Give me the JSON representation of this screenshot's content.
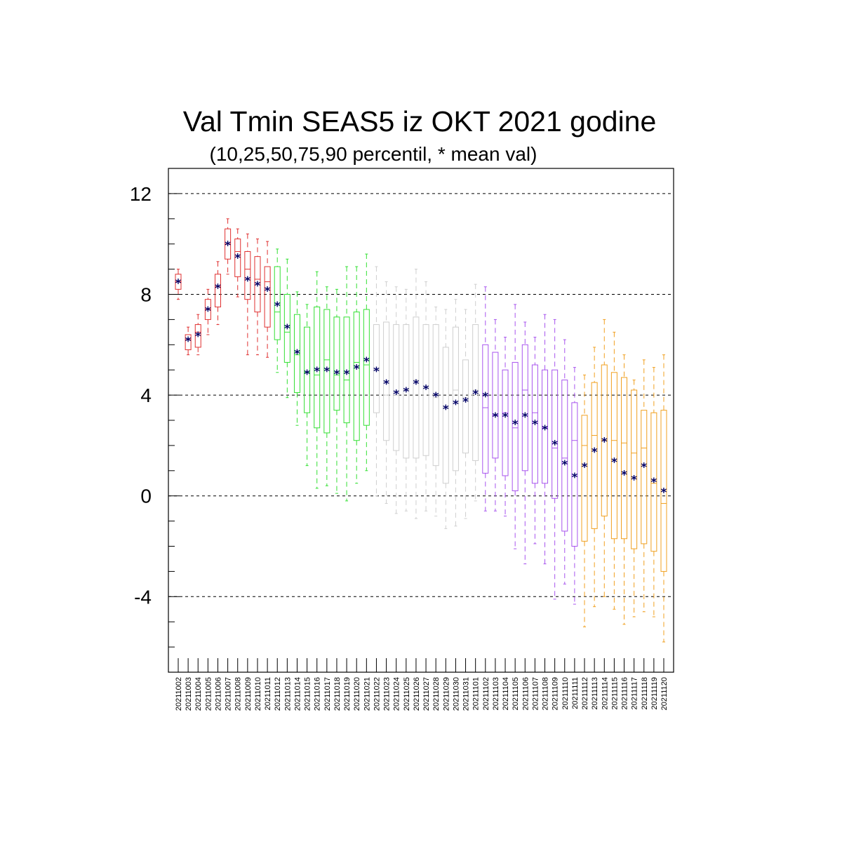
{
  "chart_data": {
    "type": "box",
    "title": "Val Tmin SEAS5 iz OKT 2021 godine",
    "subtitle": "(10,25,50,75,90 percentil, * mean val)",
    "xlabel": "",
    "ylabel": "",
    "ylim": [
      -7,
      13
    ],
    "yticks": [
      -4,
      0,
      4,
      8,
      12
    ],
    "ytick_labels": [
      "-4",
      "0",
      "4",
      "8",
      "12"
    ],
    "grid": "horizontal dashed at major ticks",
    "color_groups": [
      {
        "color": "#e03030",
        "from": 0,
        "to": 9
      },
      {
        "color": "#33e033",
        "from": 10,
        "to": 19
      },
      {
        "color": "#cfcfcf",
        "from": 20,
        "to": 30
      },
      {
        "color": "#a855ee",
        "from": 31,
        "to": 40
      },
      {
        "color": "#f0a020",
        "from": 41,
        "to": 50
      }
    ],
    "mean_marker_color": "#000066",
    "categories": [
      "20211002",
      "20211003",
      "20211004",
      "20211005",
      "20211006",
      "20211007",
      "20211008",
      "20211009",
      "20211010",
      "20211011",
      "20211012",
      "20211013",
      "20211014",
      "20211015",
      "20211016",
      "20211017",
      "20211018",
      "20211019",
      "20211020",
      "20211021",
      "20211022",
      "20211023",
      "20211024",
      "20211025",
      "20211026",
      "20211027",
      "20211028",
      "20211029",
      "20211030",
      "20211031",
      "20211101",
      "20211102",
      "20211103",
      "20211104",
      "20211105",
      "20211106",
      "20211107",
      "20211108",
      "20211109",
      "20211110",
      "20211111",
      "20211112",
      "20211113",
      "20211114",
      "20211115",
      "20211116",
      "20211117",
      "20211118",
      "20211119",
      "20211120"
    ],
    "boxes": [
      {
        "p10": 7.8,
        "p25": 8.2,
        "p50": 8.5,
        "p75": 8.8,
        "p90": 9.0,
        "mean": 8.5
      },
      {
        "p10": 5.6,
        "p25": 5.8,
        "p50": 6.2,
        "p75": 6.4,
        "p90": 6.7,
        "mean": 6.2
      },
      {
        "p10": 5.6,
        "p25": 5.9,
        "p50": 6.5,
        "p75": 6.8,
        "p90": 7.2,
        "mean": 6.4
      },
      {
        "p10": 6.4,
        "p25": 7.0,
        "p50": 7.4,
        "p75": 7.8,
        "p90": 8.2,
        "mean": 7.4
      },
      {
        "p10": 6.8,
        "p25": 7.5,
        "p50": 8.3,
        "p75": 8.8,
        "p90": 9.3,
        "mean": 8.3
      },
      {
        "p10": 8.8,
        "p25": 9.4,
        "p50": 10.0,
        "p75": 10.6,
        "p90": 11.0,
        "mean": 10.0
      },
      {
        "p10": 7.9,
        "p25": 8.7,
        "p50": 9.7,
        "p75": 10.2,
        "p90": 10.6,
        "mean": 9.5
      },
      {
        "p10": 5.6,
        "p25": 7.8,
        "p50": 9.0,
        "p75": 9.7,
        "p90": 10.4,
        "mean": 8.6
      },
      {
        "p10": 5.6,
        "p25": 7.3,
        "p50": 8.6,
        "p75": 9.5,
        "p90": 10.2,
        "mean": 8.4
      },
      {
        "p10": 5.5,
        "p25": 6.7,
        "p50": 8.5,
        "p75": 9.1,
        "p90": 10.1,
        "mean": 8.2
      },
      {
        "p10": 4.9,
        "p25": 6.2,
        "p50": 7.3,
        "p75": 9.1,
        "p90": 9.8,
        "mean": 7.6
      },
      {
        "p10": 3.9,
        "p25": 5.3,
        "p50": 6.5,
        "p75": 8.0,
        "p90": 9.4,
        "mean": 6.7
      },
      {
        "p10": 2.8,
        "p25": 4.1,
        "p50": 5.6,
        "p75": 7.2,
        "p90": 8.1,
        "mean": 5.7
      },
      {
        "p10": 1.2,
        "p25": 3.3,
        "p50": 4.9,
        "p75": 6.7,
        "p90": 7.6,
        "mean": 4.9
      },
      {
        "p10": 0.3,
        "p25": 2.7,
        "p50": 4.8,
        "p75": 7.5,
        "p90": 8.9,
        "mean": 5.0
      },
      {
        "p10": 0.4,
        "p25": 2.5,
        "p50": 5.4,
        "p75": 7.4,
        "p90": 8.3,
        "mean": 5.0
      },
      {
        "p10": 0.1,
        "p25": 3.4,
        "p50": 4.8,
        "p75": 7.1,
        "p90": 8.2,
        "mean": 4.9
      },
      {
        "p10": -0.2,
        "p25": 2.9,
        "p50": 4.6,
        "p75": 7.1,
        "p90": 9.1,
        "mean": 4.9
      },
      {
        "p10": 0.5,
        "p25": 2.2,
        "p50": 5.3,
        "p75": 7.3,
        "p90": 9.1,
        "mean": 5.1
      },
      {
        "p10": 1.0,
        "p25": 2.8,
        "p50": 5.2,
        "p75": 7.4,
        "p90": 9.6,
        "mean": 5.4
      },
      {
        "p10": 0.0,
        "p25": 3.3,
        "p50": 5.0,
        "p75": 6.8,
        "p90": 9.1,
        "mean": 5.0
      },
      {
        "p10": -0.3,
        "p25": 2.2,
        "p50": 4.0,
        "p75": 6.9,
        "p90": 8.5,
        "mean": 4.5
      },
      {
        "p10": -0.7,
        "p25": 1.8,
        "p50": 4.0,
        "p75": 6.8,
        "p90": 8.3,
        "mean": 4.1
      },
      {
        "p10": -0.6,
        "p25": 1.5,
        "p50": 4.2,
        "p75": 6.8,
        "p90": 8.2,
        "mean": 4.2
      },
      {
        "p10": -0.9,
        "p25": 1.5,
        "p50": 4.6,
        "p75": 7.1,
        "p90": 9.0,
        "mean": 4.5
      },
      {
        "p10": -0.6,
        "p25": 1.6,
        "p50": 4.3,
        "p75": 6.8,
        "p90": 8.5,
        "mean": 4.3
      },
      {
        "p10": -0.8,
        "p25": 1.2,
        "p50": 3.9,
        "p75": 6.8,
        "p90": 7.5,
        "mean": 4.0
      },
      {
        "p10": -1.3,
        "p25": 0.5,
        "p50": 3.5,
        "p75": 5.9,
        "p90": 7.4,
        "mean": 3.5
      },
      {
        "p10": -1.2,
        "p25": 1.0,
        "p50": 4.2,
        "p75": 6.7,
        "p90": 7.8,
        "mean": 3.7
      },
      {
        "p10": -0.9,
        "p25": 1.7,
        "p50": 3.9,
        "p75": 5.4,
        "p90": 7.4,
        "mean": 3.8
      },
      {
        "p10": -0.2,
        "p25": 1.4,
        "p50": 4.2,
        "p75": 6.8,
        "p90": 8.4,
        "mean": 4.1
      },
      {
        "p10": -0.6,
        "p25": 0.9,
        "p50": 3.5,
        "p75": 6.0,
        "p90": 8.3,
        "mean": 4.0
      },
      {
        "p10": -0.6,
        "p25": 1.5,
        "p50": 3.2,
        "p75": 5.7,
        "p90": 7.0,
        "mean": 3.2
      },
      {
        "p10": -0.8,
        "p25": 0.8,
        "p50": 3.3,
        "p75": 5.0,
        "p90": 6.3,
        "mean": 3.2
      },
      {
        "p10": -2.1,
        "p25": 0.2,
        "p50": 2.7,
        "p75": 5.3,
        "p90": 7.6,
        "mean": 2.9
      },
      {
        "p10": -2.7,
        "p25": 1.0,
        "p50": 4.2,
        "p75": 6.0,
        "p90": 6.9,
        "mean": 3.2
      },
      {
        "p10": -1.9,
        "p25": 0.5,
        "p50": 3.3,
        "p75": 5.2,
        "p90": 6.3,
        "mean": 2.9
      },
      {
        "p10": -2.7,
        "p25": 0.5,
        "p50": 2.7,
        "p75": 5.0,
        "p90": 7.2,
        "mean": 2.7
      },
      {
        "p10": -4.1,
        "p25": -0.1,
        "p50": 1.9,
        "p75": 5.0,
        "p90": 7.0,
        "mean": 2.1
      },
      {
        "p10": -3.5,
        "p25": -1.4,
        "p50": 1.5,
        "p75": 4.6,
        "p90": 6.2,
        "mean": 1.3
      },
      {
        "p10": -4.3,
        "p25": -2.0,
        "p50": 2.2,
        "p75": 3.7,
        "p90": 5.1,
        "mean": 0.8
      },
      {
        "p10": -5.2,
        "p25": -1.8,
        "p50": 2.0,
        "p75": 3.2,
        "p90": 4.8,
        "mean": 1.2
      },
      {
        "p10": -4.4,
        "p25": -1.3,
        "p50": 2.4,
        "p75": 4.5,
        "p90": 5.9,
        "mean": 1.8
      },
      {
        "p10": -4.0,
        "p25": -0.8,
        "p50": 2.2,
        "p75": 5.2,
        "p90": 7.0,
        "mean": 2.2
      },
      {
        "p10": -4.5,
        "p25": -1.7,
        "p50": 2.2,
        "p75": 4.9,
        "p90": 6.5,
        "mean": 1.4
      },
      {
        "p10": -5.1,
        "p25": -1.7,
        "p50": 2.1,
        "p75": 4.7,
        "p90": 5.6,
        "mean": 0.9
      },
      {
        "p10": -4.8,
        "p25": -2.1,
        "p50": 1.7,
        "p75": 4.2,
        "p90": 4.6,
        "mean": 0.7
      },
      {
        "p10": -4.6,
        "p25": -1.9,
        "p50": 1.9,
        "p75": 3.4,
        "p90": 5.4,
        "mean": 1.2
      },
      {
        "p10": -4.8,
        "p25": -2.2,
        "p50": 0.5,
        "p75": 3.3,
        "p90": 5.1,
        "mean": 0.6
      },
      {
        "p10": -5.8,
        "p25": -3.0,
        "p50": -0.3,
        "p75": 3.4,
        "p90": 5.6,
        "mean": 0.2
      }
    ]
  }
}
